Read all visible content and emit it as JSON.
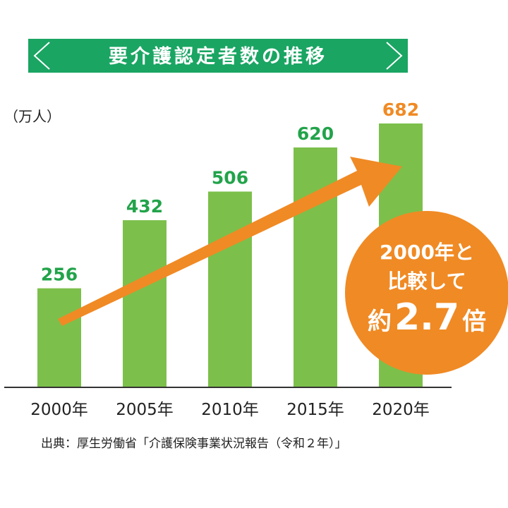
{
  "chart_data": {
    "type": "bar",
    "title": "要介護認定者数の推移",
    "unit_label": "（万人）",
    "categories": [
      "2000年",
      "2005年",
      "2010年",
      "2015年",
      "2020年"
    ],
    "values": [
      256,
      432,
      506,
      620,
      682
    ],
    "data_labels": [
      "256",
      "432",
      "506",
      "620",
      "682"
    ],
    "ylim": [
      0,
      682
    ],
    "grid": false,
    "bar_color": "#7cc04b",
    "highlight_color": "#f08a24",
    "label_color": "#22a34a",
    "title_bg_color": "#1aa563",
    "source": "出典：厚生労働省「介護保険事業状況報告（令和２年）」",
    "callout": {
      "line1": "2000年と",
      "line2": "比較して",
      "prefix": "約",
      "value": "2.7",
      "suffix": "倍"
    }
  }
}
